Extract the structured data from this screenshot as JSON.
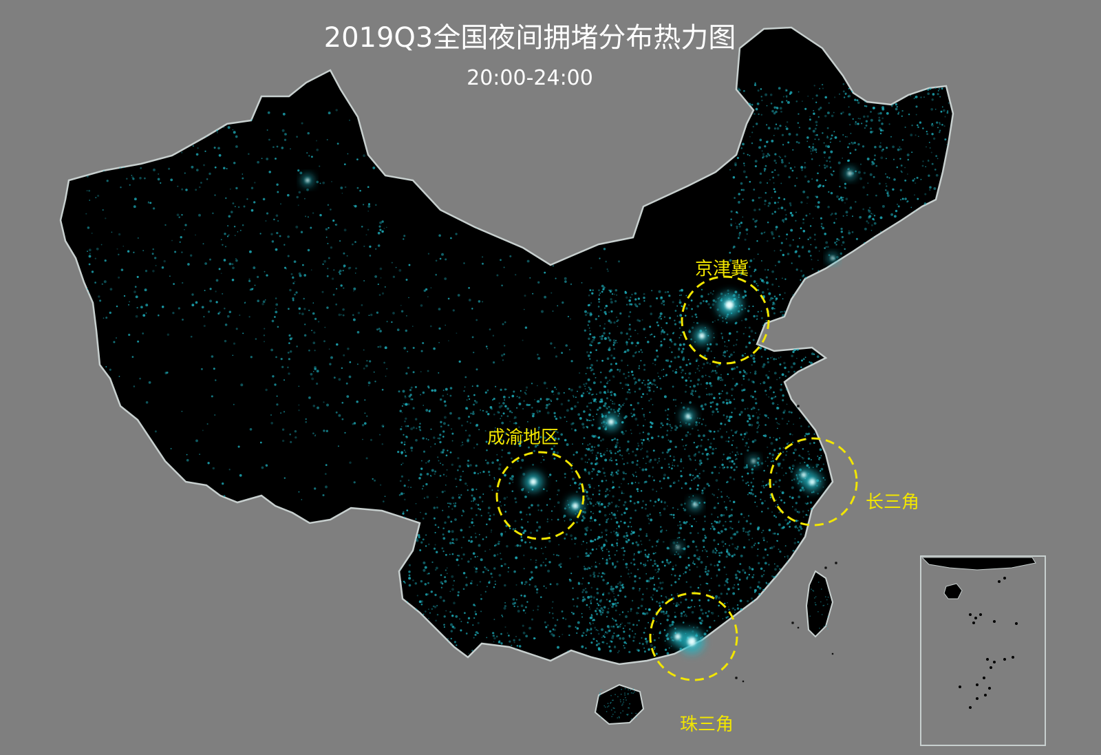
{
  "title": "2019Q3全国夜间拥堵分布热力图",
  "subtitle": "20:00-24:00",
  "colors": {
    "background": "#7f7f7f",
    "land": "#000000",
    "border": "#c8d0cf",
    "heat_low": "#1fb6c4",
    "heat_high": "#e8ffff",
    "highlight": "#f2e600"
  },
  "regions": [
    {
      "id": "jingjinji",
      "label": "京津冀"
    },
    {
      "id": "chengyu",
      "label": "成渝地区"
    },
    {
      "id": "changsanjiao",
      "label": "长三角"
    },
    {
      "id": "zhusanjiao",
      "label": "珠三角"
    }
  ],
  "inset": {
    "name": "south-china-sea-inset"
  }
}
